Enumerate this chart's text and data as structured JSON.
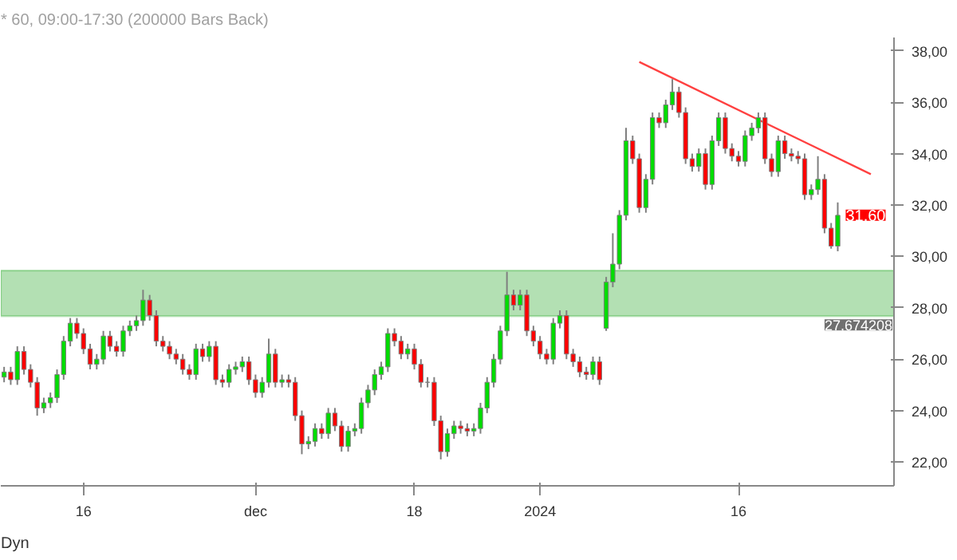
{
  "chart_data": {
    "type": "candlestick",
    "title": "* 60, 09:00-17:30 (200000 Bars Back)",
    "categories": [
      null,
      null,
      null,
      null,
      null,
      null,
      null,
      null,
      null,
      null,
      null,
      null,
      "16",
      null,
      null,
      null,
      null,
      null,
      null,
      null,
      null,
      null,
      null,
      null,
      null,
      null,
      null,
      null,
      null,
      null,
      null,
      null,
      null,
      null,
      null,
      null,
      null,
      null,
      "dec",
      null,
      null,
      null,
      null,
      null,
      null,
      null,
      null,
      null,
      null,
      null,
      null,
      null,
      null,
      null,
      null,
      null,
      null,
      null,
      null,
      null,
      null,
      null,
      "18",
      null,
      null,
      null,
      null,
      null,
      null,
      null,
      null,
      null,
      null,
      null,
      null,
      null,
      null,
      null,
      null,
      null,
      null,
      "2024",
      null,
      null,
      null,
      null,
      null,
      null,
      null,
      null,
      null,
      null,
      null,
      null,
      null,
      null,
      null,
      null,
      null,
      null,
      null,
      null,
      null,
      null,
      null,
      null,
      null,
      null,
      null,
      null,
      null,
      "16",
      null,
      null,
      null,
      null,
      null,
      null,
      null,
      null,
      null,
      null,
      null,
      null,
      null,
      null,
      null,
      null,
      null,
      null,
      null,
      null,
      null,
      null,
      null
    ],
    "ohlc": [
      [
        25.3,
        25.7,
        25.1,
        25.5
      ],
      [
        25.5,
        25.7,
        25.0,
        25.2
      ],
      [
        25.2,
        26.5,
        25.0,
        26.3
      ],
      [
        26.3,
        26.5,
        25.4,
        25.6
      ],
      [
        25.6,
        25.8,
        24.9,
        25.1
      ],
      [
        25.1,
        25.3,
        23.8,
        24.1
      ],
      [
        24.1,
        24.5,
        23.9,
        24.3
      ],
      [
        24.3,
        24.7,
        24.1,
        24.5
      ],
      [
        24.5,
        25.6,
        24.3,
        25.4
      ],
      [
        25.4,
        26.9,
        25.2,
        26.7
      ],
      [
        26.7,
        27.6,
        26.5,
        27.4
      ],
      [
        27.4,
        27.6,
        26.8,
        27.0
      ],
      [
        27.0,
        27.2,
        26.2,
        26.4
      ],
      [
        26.4,
        26.6,
        25.6,
        25.8
      ],
      [
        25.8,
        26.2,
        25.6,
        26.0
      ],
      [
        26.0,
        27.1,
        25.8,
        26.9
      ],
      [
        26.9,
        27.1,
        26.3,
        26.5
      ],
      [
        26.5,
        26.7,
        26.1,
        26.3
      ],
      [
        26.3,
        27.3,
        26.1,
        27.1
      ],
      [
        27.1,
        27.5,
        26.9,
        27.3
      ],
      [
        27.3,
        27.7,
        27.1,
        27.5
      ],
      [
        27.5,
        28.7,
        27.3,
        28.3
      ],
      [
        28.3,
        28.5,
        27.5,
        27.7
      ],
      [
        27.7,
        27.9,
        26.5,
        26.7
      ],
      [
        26.7,
        26.9,
        26.3,
        26.5
      ],
      [
        26.5,
        26.7,
        26.0,
        26.2
      ],
      [
        26.2,
        26.4,
        25.8,
        26.0
      ],
      [
        26.0,
        26.2,
        25.4,
        25.6
      ],
      [
        25.6,
        25.8,
        25.2,
        25.4
      ],
      [
        25.4,
        26.6,
        25.2,
        26.4
      ],
      [
        26.4,
        26.6,
        25.9,
        26.1
      ],
      [
        26.1,
        26.7,
        25.9,
        26.5
      ],
      [
        26.5,
        26.7,
        25.0,
        25.2
      ],
      [
        25.2,
        25.4,
        24.9,
        25.1
      ],
      [
        25.1,
        25.8,
        24.9,
        25.6
      ],
      [
        25.6,
        25.9,
        25.4,
        25.7
      ],
      [
        25.7,
        26.1,
        25.5,
        25.9
      ],
      [
        25.9,
        26.1,
        25.0,
        25.2
      ],
      [
        25.2,
        25.4,
        24.5,
        24.7
      ],
      [
        24.7,
        25.3,
        24.5,
        25.1
      ],
      [
        25.1,
        26.8,
        24.9,
        26.2
      ],
      [
        26.2,
        26.4,
        24.9,
        25.1
      ],
      [
        25.1,
        25.4,
        24.9,
        25.2
      ],
      [
        25.2,
        25.4,
        24.9,
        25.1
      ],
      [
        25.1,
        25.3,
        23.6,
        23.8
      ],
      [
        23.8,
        24.0,
        22.3,
        22.7
      ],
      [
        22.7,
        23.0,
        22.5,
        22.8
      ],
      [
        22.8,
        23.5,
        22.6,
        23.3
      ],
      [
        23.3,
        23.5,
        22.9,
        23.1
      ],
      [
        23.1,
        24.1,
        22.9,
        23.9
      ],
      [
        23.9,
        24.1,
        23.2,
        23.4
      ],
      [
        23.4,
        23.6,
        22.4,
        22.6
      ],
      [
        22.6,
        23.4,
        22.4,
        23.2
      ],
      [
        23.2,
        23.5,
        23.0,
        23.3
      ],
      [
        23.3,
        24.5,
        23.1,
        24.3
      ],
      [
        24.3,
        25.0,
        24.1,
        24.8
      ],
      [
        24.8,
        25.6,
        24.6,
        25.4
      ],
      [
        25.4,
        25.9,
        25.2,
        25.7
      ],
      [
        25.7,
        27.2,
        25.5,
        27.0
      ],
      [
        27.0,
        27.2,
        26.5,
        26.7
      ],
      [
        26.7,
        26.9,
        26.0,
        26.2
      ],
      [
        26.2,
        26.6,
        26.0,
        26.4
      ],
      [
        26.4,
        26.6,
        25.6,
        25.8
      ],
      [
        25.8,
        26.0,
        24.9,
        25.1
      ],
      [
        25.1,
        25.3,
        24.9,
        25.1
      ],
      [
        25.1,
        25.3,
        23.4,
        23.6
      ],
      [
        23.6,
        23.8,
        22.1,
        22.4
      ],
      [
        22.4,
        23.3,
        22.2,
        23.1
      ],
      [
        23.1,
        23.6,
        22.9,
        23.4
      ],
      [
        23.4,
        23.6,
        23.1,
        23.3
      ],
      [
        23.3,
        23.5,
        23.0,
        23.2
      ],
      [
        23.2,
        23.5,
        23.0,
        23.3
      ],
      [
        23.3,
        24.3,
        23.1,
        24.1
      ],
      [
        24.1,
        25.3,
        23.9,
        25.1
      ],
      [
        25.1,
        26.2,
        24.9,
        26.0
      ],
      [
        26.0,
        27.3,
        25.8,
        27.1
      ],
      [
        27.1,
        29.4,
        26.9,
        28.5
      ],
      [
        28.5,
        28.7,
        27.9,
        28.1
      ],
      [
        28.1,
        28.7,
        27.9,
        28.5
      ],
      [
        28.5,
        28.7,
        26.9,
        27.1
      ],
      [
        27.1,
        27.3,
        26.5,
        26.7
      ],
      [
        26.7,
        26.9,
        26.0,
        26.2
      ],
      [
        26.2,
        26.4,
        25.8,
        26.0
      ],
      [
        26.0,
        27.6,
        25.8,
        27.4
      ],
      [
        27.4,
        27.9,
        27.2,
        27.7
      ],
      [
        27.7,
        27.9,
        26.0,
        26.2
      ],
      [
        26.2,
        26.4,
        25.7,
        25.9
      ],
      [
        25.9,
        26.1,
        25.3,
        25.5
      ],
      [
        25.5,
        25.7,
        25.2,
        25.4
      ],
      [
        25.4,
        26.1,
        25.2,
        25.9
      ],
      [
        25.9,
        26.1,
        25.0,
        25.2
      ],
      [
        27.2,
        29.2,
        27.1,
        29.0
      ],
      [
        29.0,
        30.9,
        28.8,
        29.7
      ],
      [
        29.7,
        31.8,
        29.5,
        31.6
      ],
      [
        31.6,
        35.0,
        31.4,
        34.5
      ],
      [
        34.5,
        34.7,
        33.6,
        33.8
      ],
      [
        33.8,
        34.0,
        31.7,
        31.9
      ],
      [
        31.9,
        33.2,
        31.7,
        33.0
      ],
      [
        33.0,
        35.6,
        32.8,
        35.4
      ],
      [
        35.4,
        35.6,
        35.0,
        35.2
      ],
      [
        35.2,
        36.1,
        35.0,
        35.9
      ],
      [
        35.9,
        36.9,
        35.7,
        36.4
      ],
      [
        36.4,
        36.6,
        35.4,
        35.6
      ],
      [
        35.6,
        35.8,
        33.6,
        33.8
      ],
      [
        33.8,
        34.0,
        33.3,
        33.5
      ],
      [
        33.5,
        34.2,
        33.3,
        34.0
      ],
      [
        34.0,
        34.2,
        32.6,
        32.8
      ],
      [
        32.8,
        34.7,
        32.6,
        34.5
      ],
      [
        34.5,
        35.6,
        34.3,
        35.4
      ],
      [
        35.4,
        35.6,
        34.0,
        34.2
      ],
      [
        34.2,
        34.4,
        33.7,
        33.9
      ],
      [
        33.9,
        34.1,
        33.5,
        33.7
      ],
      [
        33.7,
        34.9,
        33.5,
        34.7
      ],
      [
        34.7,
        35.2,
        34.5,
        35.0
      ],
      [
        35.0,
        35.6,
        34.8,
        35.4
      ],
      [
        35.4,
        35.6,
        33.6,
        33.8
      ],
      [
        33.8,
        34.0,
        33.1,
        33.3
      ],
      [
        33.3,
        34.7,
        33.1,
        34.5
      ],
      [
        34.5,
        34.7,
        33.8,
        34.0
      ],
      [
        34.0,
        34.2,
        33.7,
        33.9
      ],
      [
        33.9,
        34.1,
        33.6,
        33.8
      ],
      [
        33.8,
        34.0,
        32.2,
        32.4
      ],
      [
        32.4,
        32.8,
        32.2,
        32.6
      ],
      [
        32.6,
        33.9,
        32.4,
        33.0
      ],
      [
        33.0,
        33.2,
        30.9,
        31.1
      ],
      [
        31.1,
        31.3,
        30.3,
        30.4
      ],
      [
        30.4,
        32.1,
        30.2,
        31.6
      ],
      null,
      null,
      null,
      null,
      null,
      null,
      null,
      null
    ],
    "series": [
      {
        "type": "line",
        "color": "#ff4040",
        "values": [
          null,
          null,
          null,
          null,
          null,
          null,
          null,
          null,
          null,
          null,
          null,
          null,
          null,
          null,
          null,
          null,
          null,
          null,
          null,
          null,
          null,
          null,
          null,
          null,
          null,
          null,
          null,
          null,
          null,
          null,
          null,
          null,
          null,
          null,
          null,
          null,
          null,
          null,
          null,
          null,
          null,
          null,
          null,
          null,
          null,
          null,
          null,
          null,
          null,
          null,
          null,
          null,
          null,
          null,
          null,
          null,
          null,
          null,
          null,
          null,
          null,
          null,
          null,
          null,
          null,
          null,
          null,
          null,
          null,
          null,
          null,
          null,
          null,
          null,
          null,
          null,
          null,
          null,
          null,
          null,
          null,
          null,
          null,
          null,
          null,
          null,
          null,
          null,
          null,
          null,
          null,
          null,
          null,
          null,
          null,
          null,
          37.57,
          null,
          null,
          null,
          null,
          null,
          null,
          null,
          null,
          null,
          null,
          null,
          null,
          null,
          null,
          null,
          null,
          null,
          null,
          null,
          null,
          null,
          null,
          null,
          null,
          null,
          null,
          null,
          null,
          null,
          null,
          null,
          null,
          null,
          null,
          33.2,
          null,
          null,
          null
        ]
      }
    ],
    "bands": [
      {
        "axis": "y",
        "from": 27.674208,
        "to": 29.45,
        "label": "27,674208",
        "color": "#b3e0b3"
      }
    ],
    "annotations": [
      "31,60",
      "Dyn"
    ],
    "ylim": [
      21.07,
      38.52
    ],
    "yticks": [
      {
        "value": 22,
        "label": "22,00"
      },
      {
        "value": 24,
        "label": "24,00"
      },
      {
        "value": 26,
        "label": "26,00"
      },
      {
        "value": 28,
        "label": "28,00"
      },
      {
        "value": 30,
        "label": "30,00"
      },
      {
        "value": 32,
        "label": "32,00"
      },
      {
        "value": 34,
        "label": "34,00"
      },
      {
        "value": 36,
        "label": "36,00"
      },
      {
        "value": 38,
        "label": "38,00"
      }
    ],
    "grid": false
  }
}
